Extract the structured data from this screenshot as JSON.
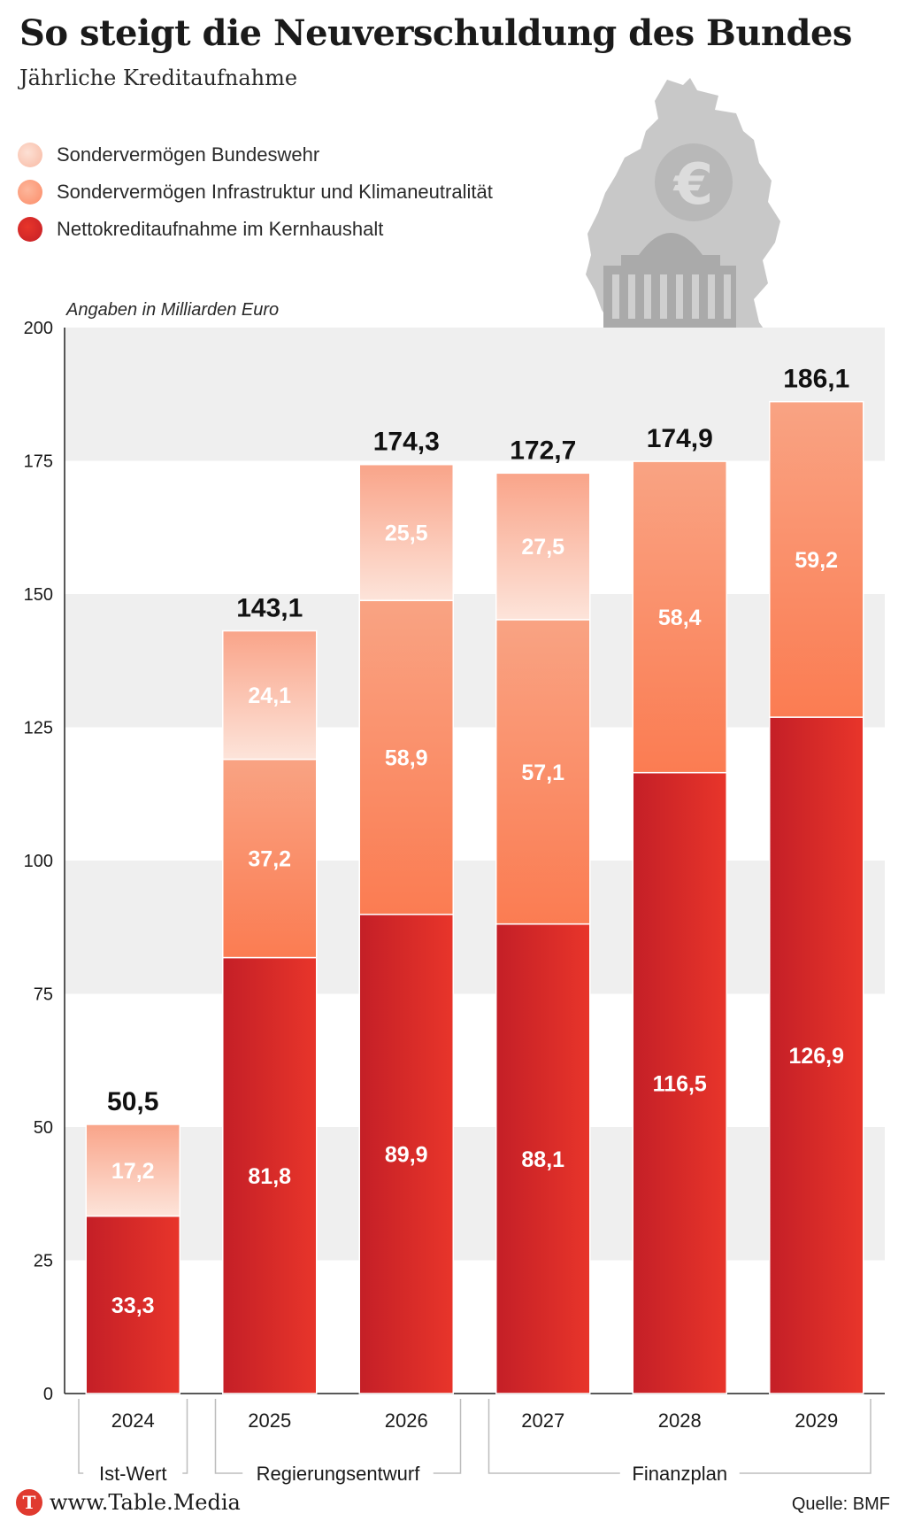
{
  "header": {
    "title": "So steigt die Neuverschuldung des Bundes",
    "subtitle": "Jährliche Kreditaufnahme"
  },
  "legend": {
    "items": [
      {
        "label": "Sondervermögen Bundeswehr",
        "color": "#f8b9a3"
      },
      {
        "label": "Sondervermögen Infrastruktur und Klimaneutralität",
        "color": "#fb8c68"
      },
      {
        "label": "Nettokreditaufnahme im Kernhaushalt",
        "color": "#d8252c"
      }
    ]
  },
  "illustration": {
    "icon": "germany-map-reichstag-euro-icon"
  },
  "chart_data": {
    "type": "bar",
    "stacked": true,
    "unit_label": "Angaben in Milliarden Euro",
    "categories": [
      "2024",
      "2025",
      "2026",
      "2027",
      "2028",
      "2029"
    ],
    "groups": [
      {
        "label": "Ist-Wert",
        "categories": [
          "2024"
        ]
      },
      {
        "label": "Regierungsentwurf",
        "categories": [
          "2025",
          "2026"
        ]
      },
      {
        "label": "Finanzplan",
        "categories": [
          "2027",
          "2028",
          "2029"
        ]
      }
    ],
    "ylim": [
      0,
      200
    ],
    "yticks": [
      0,
      25,
      50,
      75,
      100,
      125,
      150,
      175,
      200
    ],
    "series": [
      {
        "name": "Nettokreditaufnahme im Kernhaushalt",
        "values": [
          33.3,
          81.8,
          89.9,
          88.1,
          116.5,
          126.9
        ],
        "labels": [
          "33,3",
          "81,8",
          "89,9",
          "88,1",
          "116,5",
          "126,9"
        ],
        "color_top": "#c41f27",
        "color_bottom": "#e8352a"
      },
      {
        "name": "Sondervermögen Infrastruktur und Klimaneutralität",
        "values": [
          null,
          37.2,
          58.9,
          57.1,
          58.4,
          59.2
        ],
        "labels": [
          "",
          "37,2",
          "58,9",
          "57,1",
          "58,4",
          "59,2"
        ],
        "color_top": "#f9a383",
        "color_bottom": "#fb7c52"
      },
      {
        "name": "Sondervermögen Bundeswehr",
        "values": [
          17.2,
          24.1,
          25.5,
          27.5,
          null,
          null
        ],
        "labels": [
          "17,2",
          "24,1",
          "25,5",
          "27,5",
          "",
          ""
        ],
        "color_top": "#f9a489",
        "color_bottom": "#fde4da"
      }
    ],
    "totals": [
      50.5,
      143.1,
      174.3,
      172.7,
      174.9,
      186.1
    ],
    "total_labels": [
      "50,5",
      "143,1",
      "174,3",
      "172,7",
      "174,9",
      "186,1"
    ],
    "grid": "alternating-bands"
  },
  "footer": {
    "logo_letter": "T",
    "site": "www.Table.Media",
    "source": "Quelle: BMF"
  }
}
